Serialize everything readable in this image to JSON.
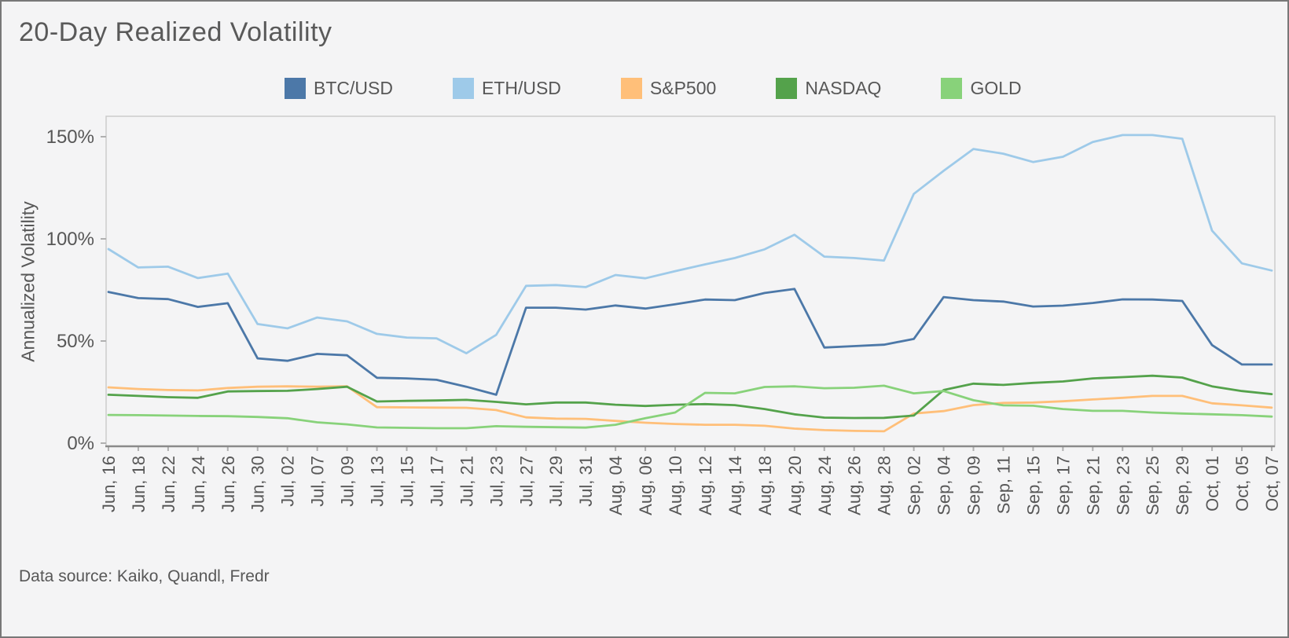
{
  "title": "20-Day Realized Volatility",
  "footer": "Data source: Kaiko, Quandl, Fredr",
  "colors": {
    "background": "#f4f4f5",
    "page_border": "#787878",
    "plot_border": "#cccccc",
    "axis_line": "#8a8a8a",
    "tick": "#b0b0b0",
    "text": "#575757"
  },
  "y_axis": {
    "label": "Annualized Volatility",
    "ticks": [
      {
        "label": "0%",
        "value": 0
      },
      {
        "label": "50%",
        "value": 50
      },
      {
        "label": "100%",
        "value": 100
      },
      {
        "label": "150%",
        "value": 150
      }
    ]
  },
  "chart_data": {
    "type": "line",
    "title": "20-Day Realized Volatility",
    "ylabel": "Annualized Volatility",
    "xlabel": "",
    "ylim": [
      0,
      155
    ],
    "grid": false,
    "legend_position": "top",
    "x": [
      "Jun, 16",
      "Jun, 18",
      "Jun, 22",
      "Jun, 24",
      "Jun, 26",
      "Jun, 30",
      "Jul, 02",
      "Jul, 07",
      "Jul, 09",
      "Jul, 13",
      "Jul, 15",
      "Jul, 17",
      "Jul, 21",
      "Jul, 23",
      "Jul, 27",
      "Jul, 29",
      "Jul, 31",
      "Aug, 04",
      "Aug, 06",
      "Aug, 10",
      "Aug, 12",
      "Aug, 14",
      "Aug, 18",
      "Aug, 20",
      "Aug, 24",
      "Aug, 26",
      "Aug, 28",
      "Sep, 02",
      "Sep, 04",
      "Sep, 09",
      "Sep, 11",
      "Sep, 15",
      "Sep, 17",
      "Sep, 21",
      "Sep, 23",
      "Sep, 25",
      "Sep, 29",
      "Oct, 01",
      "Oct, 05",
      "Oct, 07"
    ],
    "series": [
      {
        "name": "BTC/USD",
        "color": "#4c78a8",
        "values": [
          74,
          71,
          70.5,
          66.7,
          68.5,
          41.5,
          40.3,
          43.7,
          43,
          32,
          31.7,
          31,
          27.6,
          23.7,
          66.3,
          66.3,
          65.4,
          67.4,
          65.9,
          68,
          70.3,
          70,
          73.5,
          75.5,
          46.8,
          47.5,
          48.2,
          51,
          71.5,
          70,
          69.3,
          66.9,
          67.3,
          68.6,
          70.4,
          70.3,
          69.6,
          48,
          38.5,
          38.5
        ]
      },
      {
        "name": "ETH/USD",
        "color": "#9ecae9",
        "values": [
          95,
          86,
          86.4,
          80.8,
          83,
          58.3,
          56.2,
          61.5,
          59.6,
          53.5,
          51.7,
          51.3,
          44,
          53,
          77,
          77.4,
          76.4,
          82.3,
          80.7,
          84.2,
          87.5,
          90.6,
          94.9,
          102,
          91.3,
          90.6,
          89.4,
          122,
          133.3,
          144,
          141.7,
          137.6,
          140.2,
          147.4,
          150.8,
          150.8,
          149,
          104,
          88,
          84.5
        ]
      },
      {
        "name": "S&P500",
        "color": "#ffbf79",
        "values": [
          27.3,
          26.5,
          26,
          25.8,
          27,
          27.6,
          27.8,
          27.6,
          27.8,
          17.6,
          17.5,
          17.4,
          17.3,
          16.2,
          12.6,
          12,
          11.9,
          10.9,
          10,
          9.4,
          9,
          9,
          8.5,
          7.1,
          6.4,
          6,
          5.8,
          14.5,
          15.7,
          18.6,
          19.7,
          19.9,
          20.5,
          21.4,
          22.2,
          23.1,
          23.1,
          19.5,
          18.5,
          17.4
        ]
      },
      {
        "name": "NASDAQ",
        "color": "#54a24b",
        "values": [
          23.7,
          23.1,
          22.5,
          22.2,
          25.3,
          25.5,
          25.6,
          26.5,
          27.6,
          20.4,
          20.7,
          20.9,
          21.2,
          20.2,
          19,
          19.9,
          19.9,
          18.8,
          18.2,
          18.8,
          19.1,
          18.6,
          16.7,
          14.1,
          12.5,
          12.3,
          12.4,
          13.5,
          26,
          29.1,
          28.5,
          29.5,
          30.2,
          31.7,
          32.3,
          33,
          32.1,
          27.8,
          25.5,
          24
        ]
      },
      {
        "name": "GOLD",
        "color": "#88d27a",
        "values": [
          13.8,
          13.7,
          13.5,
          13.3,
          13.2,
          12.8,
          12.2,
          10.2,
          9.2,
          7.7,
          7.5,
          7.3,
          7.3,
          8.3,
          8,
          7.8,
          7.6,
          9,
          12.2,
          15,
          24.6,
          24.4,
          27.5,
          27.8,
          26.9,
          27.1,
          28.1,
          24.4,
          25.5,
          21,
          18.5,
          18.3,
          16.7,
          15.8,
          15.8,
          15,
          14.5,
          14.1,
          13.7,
          13
        ]
      }
    ]
  }
}
